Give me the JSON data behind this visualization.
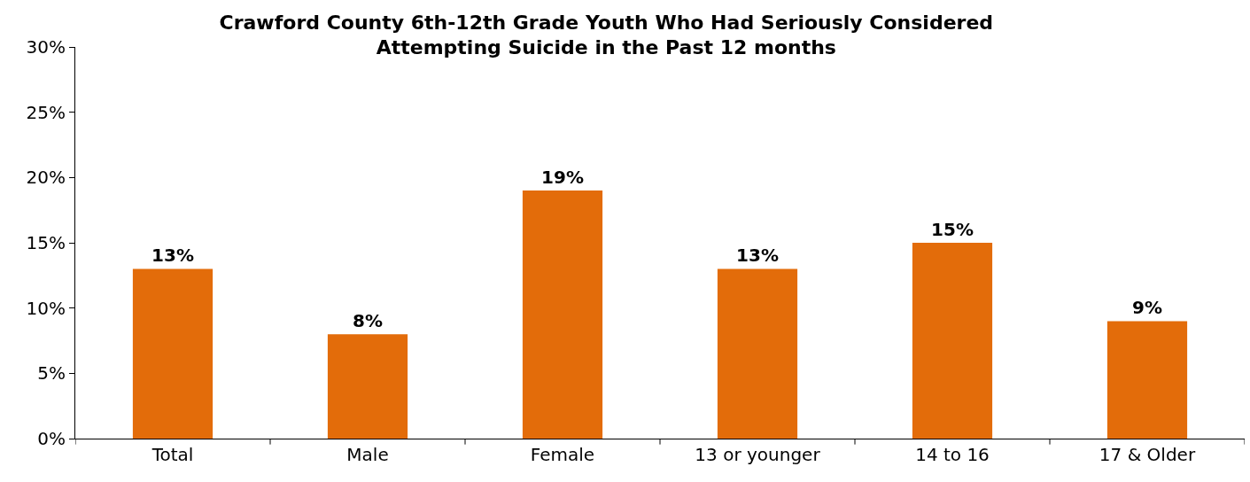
{
  "chart_data": {
    "type": "bar",
    "title": "Crawford County 6th-12th Grade Youth Who Had Seriously Considered\nAttempting Suicide in the Past 12 months",
    "categories": [
      "Total",
      "Male",
      "Female",
      "13 or younger",
      "14 to 16",
      "17 & Older"
    ],
    "values": [
      13,
      8,
      19,
      13,
      15,
      9
    ],
    "value_labels": [
      "13%",
      "8%",
      "19%",
      "13%",
      "15%",
      "9%"
    ],
    "color": "#e36c0a",
    "ylim": [
      0,
      30
    ],
    "yticks": [
      {
        "value": 0,
        "label": "0%"
      },
      {
        "value": 5,
        "label": "5%"
      },
      {
        "value": 10,
        "label": "10%"
      },
      {
        "value": 15,
        "label": "15%"
      },
      {
        "value": 20,
        "label": "20%"
      },
      {
        "value": 25,
        "label": "25%"
      },
      {
        "value": 30,
        "label": "30%"
      }
    ],
    "grid": false,
    "legend": false
  }
}
